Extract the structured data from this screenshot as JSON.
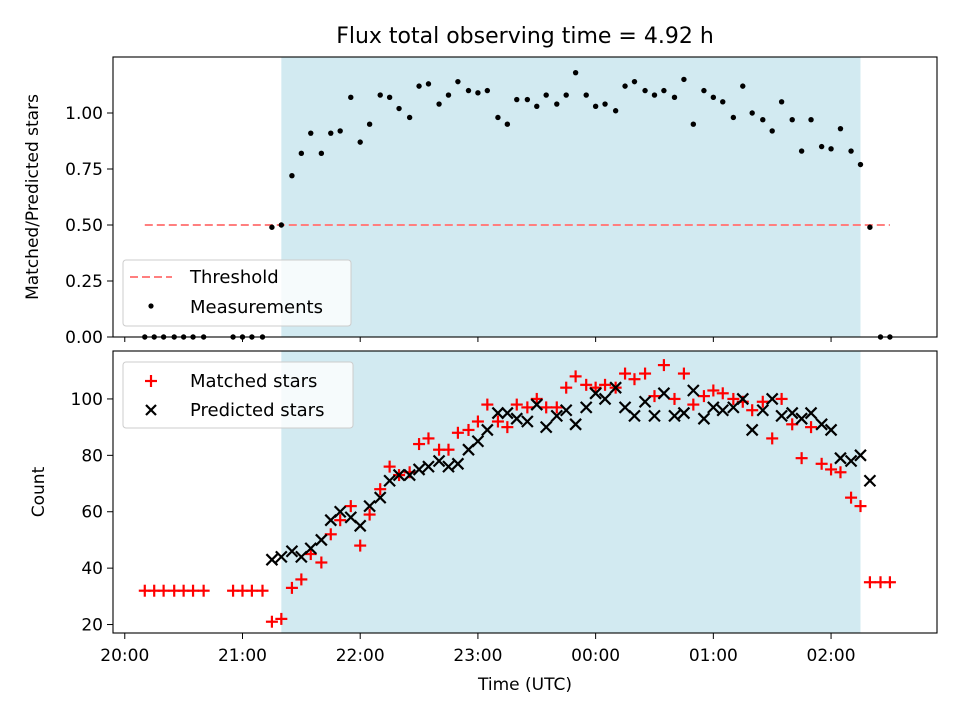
{
  "figure": {
    "title": "Flux total observing time = 4.92 h",
    "x_label": "Time (UTC)",
    "x_tick_labels": [
      "20:00",
      "21:00",
      "22:00",
      "23:00",
      "00:00",
      "01:00",
      "02:00"
    ]
  },
  "chart_data": [
    {
      "type": "scatter",
      "panel": "top",
      "ylabel": "Matched/Predicted stars",
      "ylim": [
        0,
        1.25
      ],
      "yticks": [
        "0.00",
        "0.25",
        "0.50",
        "0.75",
        "1.00"
      ],
      "x_unit": "hours since 20:00 UTC",
      "xlim": [
        -0.1,
        6.9
      ],
      "observing_window": [
        1.33,
        6.25
      ],
      "shade_color": "#add8e6",
      "threshold": {
        "name": "Threshold",
        "value": 0.5,
        "x_range": [
          0.17,
          6.5
        ],
        "color": "#ff7f7f",
        "style": "dashed"
      },
      "series": [
        {
          "name": "Measurements",
          "color": "#000000",
          "marker": "dot",
          "x": [
            0.17,
            0.25,
            0.33,
            0.42,
            0.5,
            0.58,
            0.67,
            0.92,
            1.0,
            1.08,
            1.17,
            1.25,
            1.33,
            1.42,
            1.5,
            1.58,
            1.67,
            1.75,
            1.83,
            1.92,
            2.0,
            2.08,
            2.17,
            2.25,
            2.33,
            2.42,
            2.5,
            2.58,
            2.67,
            2.75,
            2.83,
            2.92,
            3.0,
            3.08,
            3.17,
            3.25,
            3.33,
            3.42,
            3.5,
            3.58,
            3.67,
            3.75,
            3.83,
            3.92,
            4.0,
            4.08,
            4.17,
            4.25,
            4.33,
            4.42,
            4.5,
            4.58,
            4.67,
            4.75,
            4.83,
            4.92,
            5.0,
            5.08,
            5.17,
            5.25,
            5.33,
            5.42,
            5.5,
            5.58,
            5.67,
            5.75,
            5.83,
            5.92,
            6.0,
            6.08,
            6.17,
            6.25,
            6.33,
            6.42,
            6.5
          ],
          "y": [
            0,
            0,
            0,
            0,
            0,
            0,
            0,
            0,
            0,
            0,
            0,
            0.49,
            0.5,
            0.72,
            0.82,
            0.91,
            0.82,
            0.91,
            0.92,
            1.07,
            0.87,
            0.95,
            1.08,
            1.07,
            1.02,
            0.98,
            1.12,
            1.13,
            1.04,
            1.08,
            1.14,
            1.1,
            1.09,
            1.1,
            0.98,
            0.95,
            1.06,
            1.06,
            1.03,
            1.08,
            1.04,
            1.08,
            1.18,
            1.08,
            1.03,
            1.04,
            1.01,
            1.12,
            1.14,
            1.1,
            1.08,
            1.1,
            1.07,
            1.15,
            0.95,
            1.1,
            1.07,
            1.05,
            0.98,
            1.12,
            1.0,
            0.97,
            0.92,
            1.05,
            0.97,
            0.83,
            0.97,
            0.85,
            0.84,
            0.93,
            0.83,
            0.77,
            0.49,
            0,
            0
          ]
        }
      ]
    },
    {
      "type": "scatter",
      "panel": "bottom",
      "ylabel": "Count",
      "ylim": [
        17,
        117
      ],
      "yticks": [
        "20",
        "40",
        "60",
        "80",
        "100"
      ],
      "x_unit": "hours since 20:00 UTC",
      "xlim": [
        -0.1,
        6.9
      ],
      "observing_window": [
        1.33,
        6.25
      ],
      "shade_color": "#add8e6",
      "series": [
        {
          "name": "Matched stars",
          "color": "#ff0000",
          "marker": "plus",
          "x": [
            0.17,
            0.25,
            0.33,
            0.42,
            0.5,
            0.58,
            0.67,
            0.92,
            1.0,
            1.08,
            1.17,
            1.25,
            1.33,
            1.42,
            1.5,
            1.58,
            1.67,
            1.75,
            1.83,
            1.92,
            2.0,
            2.08,
            2.17,
            2.25,
            2.33,
            2.42,
            2.5,
            2.58,
            2.67,
            2.75,
            2.83,
            2.92,
            3.0,
            3.08,
            3.17,
            3.25,
            3.33,
            3.42,
            3.5,
            3.58,
            3.67,
            3.75,
            3.83,
            3.92,
            4.0,
            4.08,
            4.17,
            4.25,
            4.33,
            4.42,
            4.5,
            4.58,
            4.67,
            4.75,
            4.83,
            4.92,
            5.0,
            5.08,
            5.17,
            5.25,
            5.33,
            5.42,
            5.5,
            5.58,
            5.67,
            5.75,
            5.83,
            5.92,
            6.0,
            6.08,
            6.17,
            6.25,
            6.33,
            6.42,
            6.5
          ],
          "y": [
            32,
            32,
            32,
            32,
            32,
            32,
            32,
            32,
            32,
            32,
            32,
            21,
            22,
            33,
            36,
            45,
            42,
            52,
            57,
            62,
            48,
            59,
            68,
            76,
            73,
            74,
            84,
            86,
            82,
            82,
            88,
            89,
            92,
            98,
            92,
            90,
            98,
            97,
            100,
            97,
            97,
            104,
            108,
            105,
            104,
            105,
            104,
            109,
            107,
            109,
            101,
            112,
            100,
            109,
            98,
            101,
            103,
            102,
            100,
            99,
            96,
            99,
            86,
            100,
            91,
            79,
            90,
            77,
            75,
            74,
            65,
            62,
            35,
            35,
            35
          ]
        },
        {
          "name": "Predicted stars",
          "color": "#000000",
          "marker": "x",
          "x": [
            1.25,
            1.33,
            1.42,
            1.5,
            1.58,
            1.67,
            1.75,
            1.83,
            1.92,
            2.0,
            2.08,
            2.17,
            2.25,
            2.33,
            2.42,
            2.5,
            2.58,
            2.67,
            2.75,
            2.83,
            2.92,
            3.0,
            3.08,
            3.17,
            3.25,
            3.33,
            3.42,
            3.5,
            3.58,
            3.67,
            3.75,
            3.83,
            3.92,
            4.0,
            4.08,
            4.17,
            4.25,
            4.33,
            4.42,
            4.5,
            4.58,
            4.67,
            4.75,
            4.83,
            4.92,
            5.0,
            5.08,
            5.17,
            5.25,
            5.33,
            5.42,
            5.5,
            5.58,
            5.67,
            5.75,
            5.83,
            5.92,
            6.0,
            6.08,
            6.17,
            6.25,
            6.33
          ],
          "y": [
            43,
            44,
            46,
            44,
            47,
            50,
            57,
            60,
            58,
            55,
            62,
            65,
            71,
            73,
            73,
            75,
            76,
            78,
            76,
            77,
            82,
            85,
            89,
            95,
            95,
            93,
            92,
            98,
            90,
            94,
            96,
            91,
            97,
            102,
            100,
            104,
            97,
            94,
            99,
            94,
            102,
            94,
            95,
            103,
            93,
            97,
            96,
            97,
            100,
            89,
            96,
            100,
            94,
            95,
            93,
            95,
            91,
            89,
            79,
            78,
            80,
            71
          ]
        }
      ]
    }
  ]
}
